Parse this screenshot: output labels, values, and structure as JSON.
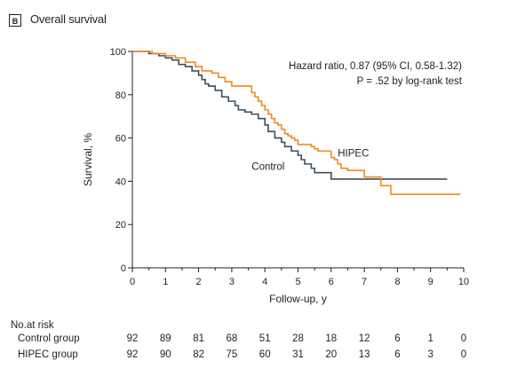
{
  "panel": {
    "badge": "B",
    "title": "Overall survival"
  },
  "colors": {
    "control": "#3f4e5a",
    "hipec": "#f08a1c",
    "axis": "#231f20"
  },
  "chart_data": {
    "type": "line",
    "title": "Overall survival",
    "xlabel": "Follow-up, y",
    "ylabel": "Survival, %",
    "xlim": [
      0,
      10
    ],
    "ylim": [
      0,
      100
    ],
    "xticks": [
      0,
      1,
      2,
      3,
      4,
      5,
      6,
      7,
      8,
      9,
      10
    ],
    "yticks": [
      0,
      20,
      40,
      60,
      80,
      100
    ],
    "grid": false,
    "annotations": [
      "Hazard ratio, 0.87 (95% CI, 0.58-1.32)",
      "P = .52 by log-rank test"
    ],
    "series": [
      {
        "name": "Control",
        "step": true,
        "x": [
          0,
          0.5,
          0.8,
          1.0,
          1.2,
          1.4,
          1.6,
          1.8,
          2.0,
          2.1,
          2.2,
          2.3,
          2.5,
          2.7,
          2.9,
          3.1,
          3.2,
          3.4,
          3.6,
          3.8,
          4.0,
          4.1,
          4.3,
          4.5,
          4.6,
          4.8,
          5.0,
          5.1,
          5.2,
          5.4,
          5.5,
          6.0,
          7.0,
          8.0,
          9.0,
          9.5
        ],
        "y": [
          100,
          99,
          98,
          97,
          96,
          94,
          93,
          91,
          89,
          87,
          85,
          84,
          82,
          79,
          77,
          75,
          73,
          72,
          71,
          69,
          66,
          63,
          60,
          58,
          56,
          54,
          52,
          50,
          48,
          46,
          44,
          41,
          41,
          41,
          41,
          41
        ]
      },
      {
        "name": "HIPEC",
        "step": true,
        "x": [
          0,
          0.6,
          1.0,
          1.3,
          1.6,
          1.9,
          2.1,
          2.4,
          2.6,
          2.8,
          3.0,
          3.6,
          3.7,
          3.8,
          3.9,
          4.0,
          4.1,
          4.2,
          4.3,
          4.4,
          4.5,
          4.6,
          4.7,
          4.8,
          4.9,
          5.0,
          5.4,
          5.5,
          5.6,
          6.0,
          6.1,
          6.2,
          6.3,
          6.5,
          7.0,
          7.5,
          7.8,
          8.0,
          9.0,
          9.9
        ],
        "y": [
          100,
          99,
          98,
          97,
          95,
          93,
          91,
          90,
          88,
          86,
          84,
          81,
          79,
          77,
          75,
          73,
          71,
          69,
          67,
          66,
          64,
          62,
          61,
          60,
          59,
          57,
          56,
          55,
          54,
          51,
          50,
          48,
          46,
          45,
          42,
          38,
          34,
          34,
          34,
          34
        ]
      }
    ],
    "series_labels": [
      "Control",
      "HIPEC"
    ],
    "risk_table": {
      "header": "No.at risk",
      "rows": [
        {
          "label": "Control group",
          "values": [
            "92",
            "89",
            "81",
            "68",
            "51",
            "28",
            "18",
            "12",
            "6",
            "1",
            "0"
          ]
        },
        {
          "label": "HIPEC group",
          "values": [
            "92",
            "90",
            "82",
            "75",
            "60",
            "31",
            "20",
            "13",
            "6",
            "3",
            "0"
          ]
        }
      ]
    }
  }
}
